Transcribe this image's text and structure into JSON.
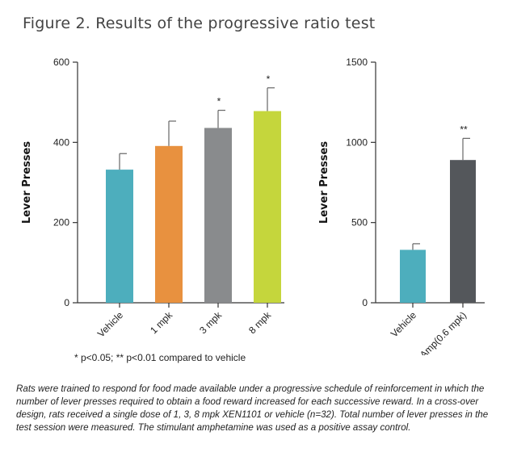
{
  "figure_title": "Figure 2.  Results of the progressive ratio test",
  "footnote": "* p<0.05; ** p<0.01 compared to vehicle",
  "caption": "Rats were trained to respond for food made available under a progressive schedule of reinforcement in which the number of lever presses required to obtain a food reward increased for each successive reward. In a cross-over design, rats received a single dose of 1, 3, 8 mpk XEN1101 or vehicle (n=32). Total number of lever presses in the test session were measured. The stimulant amphetamine was used as a positive assay control.",
  "chart_data": [
    {
      "type": "bar",
      "ylabel": "Lever Presses",
      "ylim": [
        0,
        600
      ],
      "yticks": [
        0,
        200,
        400,
        600
      ],
      "categories": [
        "Vehicle",
        "1 mpk",
        "3 mpk",
        "8 mpk"
      ],
      "values": [
        332,
        391,
        436,
        478
      ],
      "errors": [
        40,
        62,
        44,
        58
      ],
      "significance": [
        "",
        "",
        "*",
        "*"
      ],
      "colors": [
        "#4daebd",
        "#e8913f",
        "#898b8d",
        "#c5d63c"
      ]
    },
    {
      "type": "bar",
      "ylabel": "Lever Presses",
      "ylim": [
        0,
        1500
      ],
      "yticks": [
        0,
        500,
        1000,
        1500
      ],
      "categories": [
        "Vehicle",
        "Amp(0.6 mpk)"
      ],
      "values": [
        330,
        890
      ],
      "errors": [
        38,
        135
      ],
      "significance": [
        "",
        "**"
      ],
      "colors": [
        "#4daebd",
        "#54575b"
      ]
    }
  ]
}
